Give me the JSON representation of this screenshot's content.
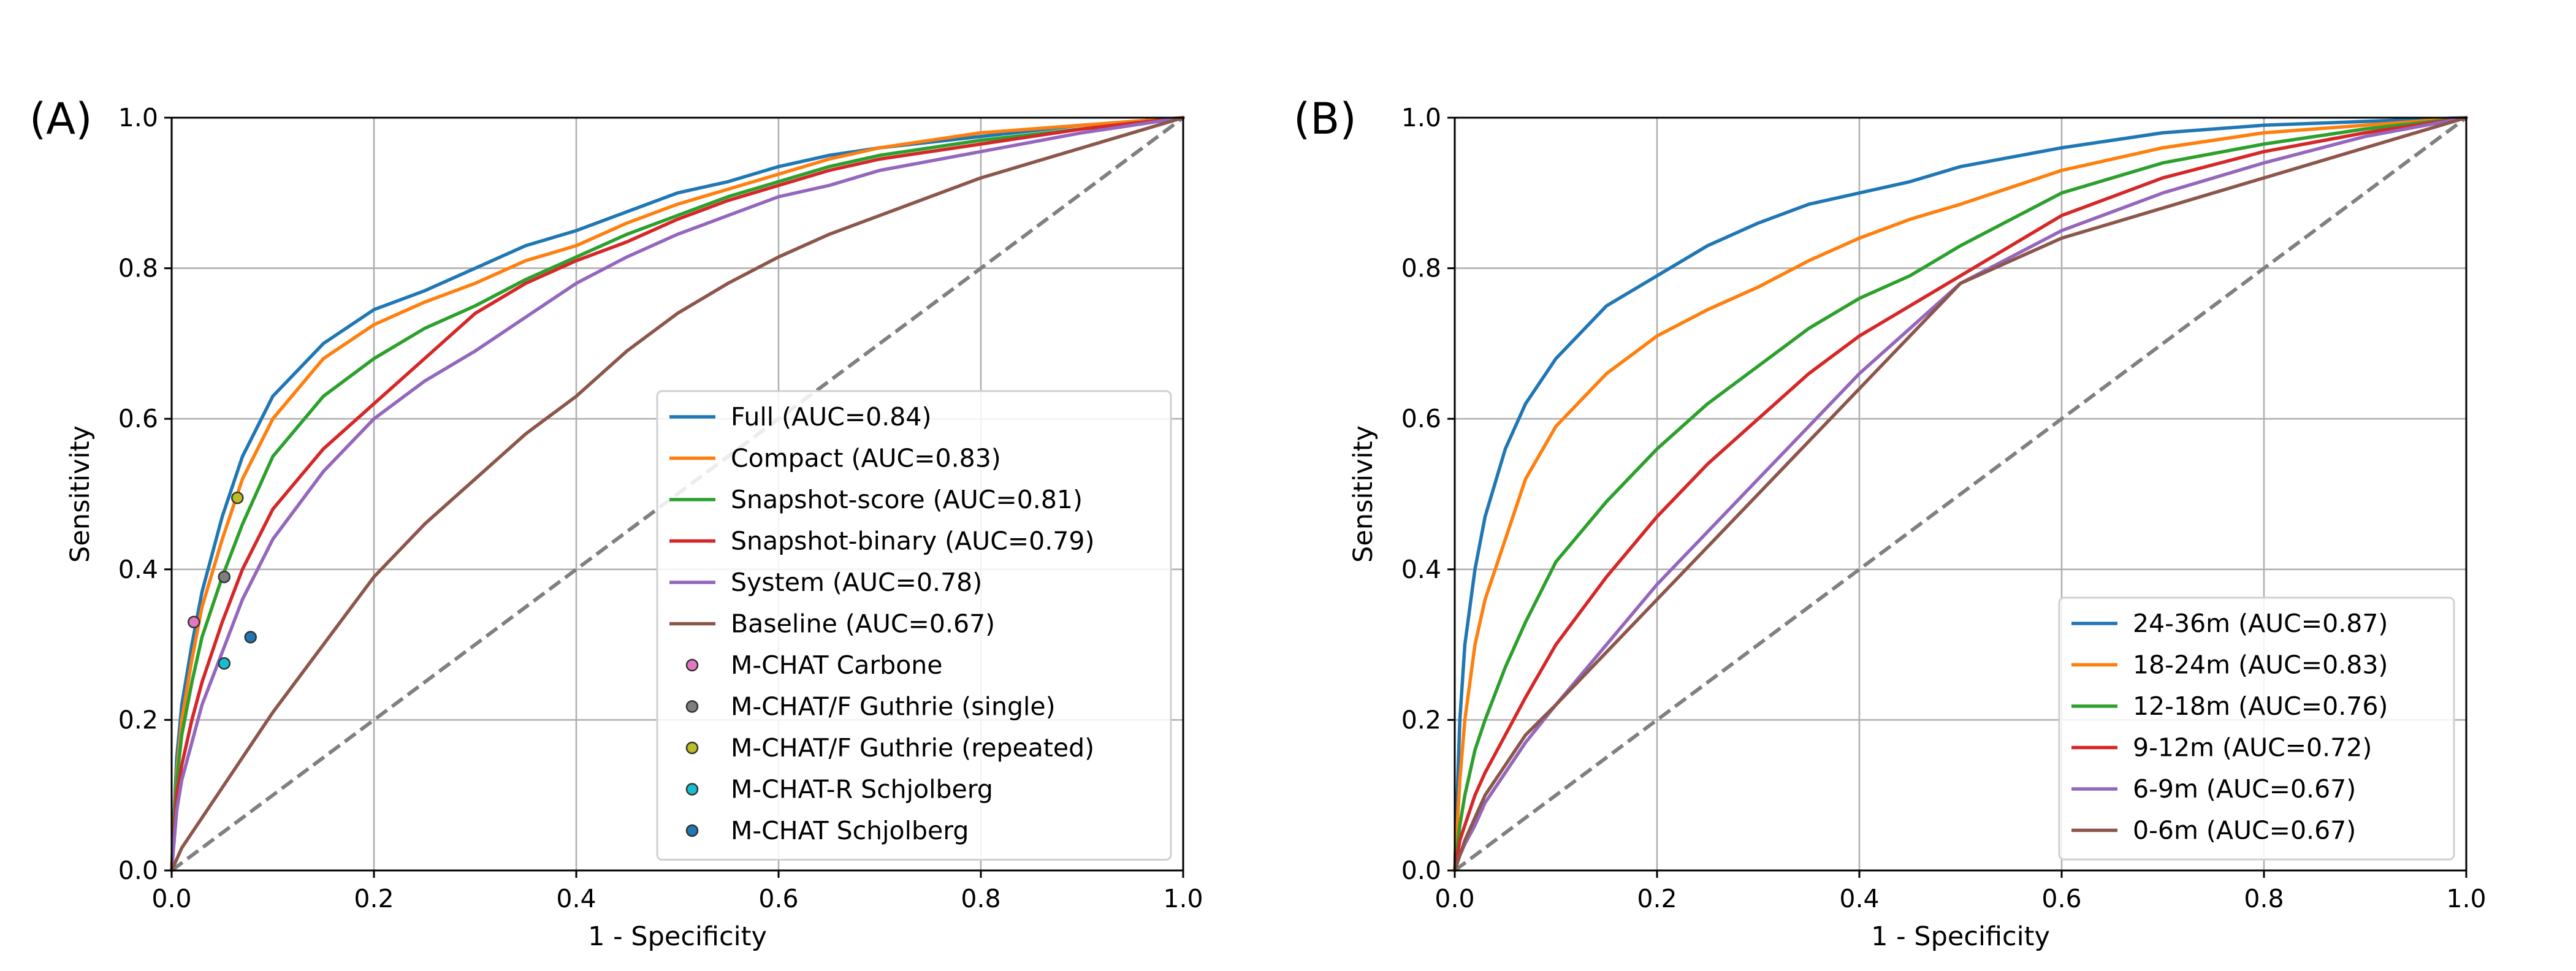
{
  "chart_data": [
    {
      "panel_label": "(A)",
      "type": "line",
      "xlabel": "1 - Specificity",
      "ylabel": "Sensitivity",
      "xlim": [
        0.0,
        1.0
      ],
      "ylim": [
        0.0,
        1.0
      ],
      "xticks": [
        "0.0",
        "0.2",
        "0.4",
        "0.6",
        "0.8",
        "1.0"
      ],
      "yticks": [
        "0.0",
        "0.2",
        "0.4",
        "0.6",
        "0.8",
        "1.0"
      ],
      "grid": true,
      "legend_position": "lower-right",
      "series": [
        {
          "name": "Full (AUC=0.84)",
          "color": "#1f77b4",
          "x": [
            0,
            0.005,
            0.01,
            0.02,
            0.03,
            0.05,
            0.07,
            0.1,
            0.15,
            0.2,
            0.25,
            0.3,
            0.35,
            0.4,
            0.45,
            0.5,
            0.55,
            0.6,
            0.65,
            0.7,
            0.8,
            0.9,
            1.0
          ],
          "y": [
            0,
            0.15,
            0.22,
            0.3,
            0.37,
            0.47,
            0.55,
            0.63,
            0.7,
            0.745,
            0.77,
            0.8,
            0.83,
            0.85,
            0.875,
            0.9,
            0.915,
            0.935,
            0.95,
            0.96,
            0.975,
            0.99,
            1.0
          ]
        },
        {
          "name": "Compact (AUC=0.83)",
          "color": "#ff7f0e",
          "x": [
            0,
            0.005,
            0.01,
            0.02,
            0.03,
            0.05,
            0.07,
            0.1,
            0.15,
            0.2,
            0.25,
            0.3,
            0.35,
            0.4,
            0.45,
            0.5,
            0.55,
            0.6,
            0.65,
            0.7,
            0.8,
            0.9,
            1.0
          ],
          "y": [
            0,
            0.13,
            0.2,
            0.28,
            0.35,
            0.44,
            0.52,
            0.6,
            0.68,
            0.725,
            0.755,
            0.78,
            0.81,
            0.83,
            0.86,
            0.885,
            0.905,
            0.925,
            0.945,
            0.96,
            0.98,
            0.99,
            1.0
          ]
        },
        {
          "name": "Snapshot-score (AUC=0.81)",
          "color": "#2ca02c",
          "x": [
            0,
            0.005,
            0.01,
            0.02,
            0.03,
            0.05,
            0.07,
            0.1,
            0.15,
            0.2,
            0.25,
            0.3,
            0.35,
            0.4,
            0.45,
            0.5,
            0.55,
            0.6,
            0.65,
            0.7,
            0.8,
            0.9,
            1.0
          ],
          "y": [
            0,
            0.12,
            0.18,
            0.25,
            0.31,
            0.39,
            0.46,
            0.55,
            0.63,
            0.68,
            0.72,
            0.75,
            0.785,
            0.815,
            0.845,
            0.87,
            0.895,
            0.915,
            0.935,
            0.95,
            0.97,
            0.985,
            1.0
          ]
        },
        {
          "name": "Snapshot-binary (AUC=0.79)",
          "color": "#d62728",
          "x": [
            0,
            0.005,
            0.01,
            0.02,
            0.03,
            0.05,
            0.07,
            0.1,
            0.15,
            0.2,
            0.25,
            0.3,
            0.35,
            0.4,
            0.45,
            0.5,
            0.55,
            0.6,
            0.65,
            0.7,
            0.8,
            0.9,
            1.0
          ],
          "y": [
            0,
            0.1,
            0.14,
            0.2,
            0.25,
            0.33,
            0.4,
            0.48,
            0.56,
            0.62,
            0.68,
            0.74,
            0.78,
            0.81,
            0.835,
            0.865,
            0.89,
            0.91,
            0.93,
            0.945,
            0.965,
            0.985,
            1.0
          ]
        },
        {
          "name": "System (AUC=0.78)",
          "color": "#9467bd",
          "x": [
            0,
            0.005,
            0.01,
            0.02,
            0.03,
            0.05,
            0.07,
            0.1,
            0.15,
            0.2,
            0.25,
            0.3,
            0.35,
            0.4,
            0.45,
            0.5,
            0.55,
            0.6,
            0.65,
            0.7,
            0.8,
            0.9,
            1.0
          ],
          "y": [
            0,
            0.08,
            0.12,
            0.17,
            0.22,
            0.29,
            0.36,
            0.44,
            0.53,
            0.6,
            0.65,
            0.69,
            0.735,
            0.78,
            0.815,
            0.845,
            0.87,
            0.895,
            0.91,
            0.93,
            0.955,
            0.98,
            1.0
          ]
        },
        {
          "name": "Baseline (AUC=0.67)",
          "color": "#8c564b",
          "x": [
            0,
            0.01,
            0.02,
            0.04,
            0.06,
            0.08,
            0.1,
            0.15,
            0.2,
            0.25,
            0.3,
            0.35,
            0.4,
            0.45,
            0.5,
            0.55,
            0.6,
            0.65,
            0.7,
            0.8,
            0.9,
            1.0
          ],
          "y": [
            0,
            0.03,
            0.05,
            0.09,
            0.13,
            0.17,
            0.21,
            0.3,
            0.39,
            0.46,
            0.52,
            0.58,
            0.63,
            0.69,
            0.74,
            0.78,
            0.815,
            0.845,
            0.87,
            0.92,
            0.96,
            1.0
          ]
        }
      ],
      "diagonal": {
        "x": [
          0,
          1
        ],
        "y": [
          0,
          1
        ],
        "color": "#808080",
        "style": "dashed"
      },
      "points": [
        {
          "name": "M-CHAT Carbone",
          "color": "#e377c2",
          "x": 0.022,
          "y": 0.33
        },
        {
          "name": "M-CHAT/F Guthrie (single)",
          "color": "#7f7f7f",
          "x": 0.052,
          "y": 0.39
        },
        {
          "name": "M-CHAT/F Guthrie (repeated)",
          "color": "#bcbd22",
          "x": 0.065,
          "y": 0.495
        },
        {
          "name": "M-CHAT-R Schjolberg",
          "color": "#17becf",
          "x": 0.052,
          "y": 0.275
        },
        {
          "name": "M-CHAT Schjolberg",
          "color": "#1f77b4",
          "x": 0.078,
          "y": 0.31
        }
      ]
    },
    {
      "panel_label": "(B)",
      "type": "line",
      "xlabel": "1 - Specificity",
      "ylabel": "Sensitivity",
      "xlim": [
        0.0,
        1.0
      ],
      "ylim": [
        0.0,
        1.0
      ],
      "xticks": [
        "0.0",
        "0.2",
        "0.4",
        "0.6",
        "0.8",
        "1.0"
      ],
      "yticks": [
        "0.0",
        "0.2",
        "0.4",
        "0.6",
        "0.8",
        "1.0"
      ],
      "grid": true,
      "legend_position": "lower-right",
      "series": [
        {
          "name": "24-36m (AUC=0.87)",
          "color": "#1f77b4",
          "x": [
            0,
            0.005,
            0.01,
            0.02,
            0.03,
            0.05,
            0.07,
            0.1,
            0.15,
            0.2,
            0.25,
            0.3,
            0.35,
            0.4,
            0.45,
            0.5,
            0.6,
            0.7,
            0.8,
            0.9,
            1.0
          ],
          "y": [
            0,
            0.2,
            0.3,
            0.4,
            0.47,
            0.56,
            0.62,
            0.68,
            0.75,
            0.79,
            0.83,
            0.86,
            0.885,
            0.9,
            0.915,
            0.935,
            0.96,
            0.98,
            0.99,
            0.995,
            1.0
          ]
        },
        {
          "name": "18-24m (AUC=0.83)",
          "color": "#ff7f0e",
          "x": [
            0,
            0.005,
            0.01,
            0.02,
            0.03,
            0.05,
            0.07,
            0.1,
            0.15,
            0.2,
            0.25,
            0.3,
            0.35,
            0.4,
            0.45,
            0.5,
            0.6,
            0.7,
            0.8,
            0.9,
            1.0
          ],
          "y": [
            0,
            0.12,
            0.2,
            0.3,
            0.36,
            0.44,
            0.52,
            0.59,
            0.66,
            0.71,
            0.745,
            0.775,
            0.81,
            0.84,
            0.865,
            0.885,
            0.93,
            0.96,
            0.98,
            0.99,
            1.0
          ]
        },
        {
          "name": "12-18m (AUC=0.76)",
          "color": "#2ca02c",
          "x": [
            0,
            0.005,
            0.01,
            0.02,
            0.03,
            0.05,
            0.07,
            0.1,
            0.15,
            0.2,
            0.25,
            0.3,
            0.35,
            0.4,
            0.45,
            0.5,
            0.6,
            0.7,
            0.8,
            0.9,
            1.0
          ],
          "y": [
            0,
            0.06,
            0.1,
            0.16,
            0.2,
            0.27,
            0.33,
            0.41,
            0.49,
            0.56,
            0.62,
            0.67,
            0.72,
            0.76,
            0.79,
            0.83,
            0.9,
            0.94,
            0.965,
            0.985,
            1.0
          ]
        },
        {
          "name": "9-12m (AUC=0.72)",
          "color": "#d62728",
          "x": [
            0,
            0.005,
            0.01,
            0.02,
            0.03,
            0.05,
            0.07,
            0.1,
            0.15,
            0.2,
            0.25,
            0.3,
            0.35,
            0.4,
            0.45,
            0.5,
            0.6,
            0.7,
            0.8,
            0.9,
            1.0
          ],
          "y": [
            0,
            0.04,
            0.06,
            0.1,
            0.13,
            0.18,
            0.23,
            0.3,
            0.39,
            0.47,
            0.54,
            0.6,
            0.66,
            0.71,
            0.75,
            0.79,
            0.87,
            0.92,
            0.955,
            0.98,
            1.0
          ]
        },
        {
          "name": "6-9m (AUC=0.67)",
          "color": "#9467bd",
          "x": [
            0,
            0.005,
            0.01,
            0.02,
            0.03,
            0.05,
            0.07,
            0.1,
            0.15,
            0.2,
            0.25,
            0.3,
            0.35,
            0.4,
            0.45,
            0.5,
            0.6,
            0.7,
            0.8,
            0.9,
            1.0
          ],
          "y": [
            0,
            0.02,
            0.035,
            0.06,
            0.09,
            0.13,
            0.17,
            0.22,
            0.3,
            0.38,
            0.45,
            0.52,
            0.59,
            0.66,
            0.72,
            0.78,
            0.85,
            0.9,
            0.94,
            0.975,
            1.0
          ]
        },
        {
          "name": "0-6m (AUC=0.67)",
          "color": "#8c564b",
          "x": [
            0,
            0.005,
            0.01,
            0.02,
            0.03,
            0.05,
            0.07,
            0.1,
            0.15,
            0.2,
            0.25,
            0.3,
            0.35,
            0.4,
            0.45,
            0.5,
            0.6,
            0.7,
            0.8,
            0.9,
            1.0
          ],
          "y": [
            0,
            0.02,
            0.04,
            0.07,
            0.1,
            0.14,
            0.18,
            0.22,
            0.29,
            0.36,
            0.43,
            0.5,
            0.57,
            0.64,
            0.71,
            0.78,
            0.84,
            0.88,
            0.92,
            0.96,
            1.0
          ]
        }
      ],
      "diagonal": {
        "x": [
          0,
          1
        ],
        "y": [
          0,
          1
        ],
        "color": "#808080",
        "style": "dashed"
      },
      "points": []
    }
  ]
}
